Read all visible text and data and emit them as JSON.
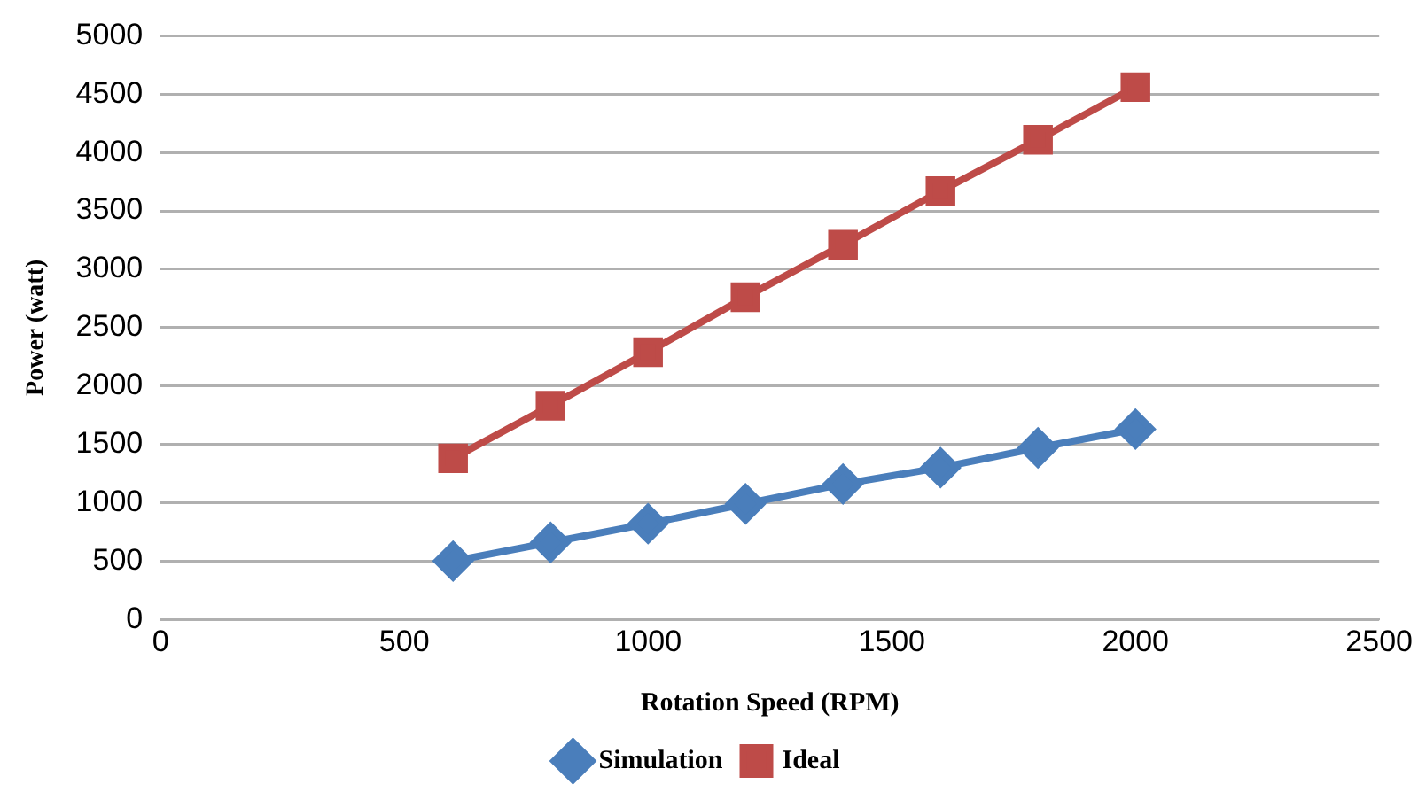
{
  "chart_data": {
    "type": "line",
    "xlabel": "Rotation Speed (RPM)",
    "ylabel": "Power (watt)",
    "x": [
      600,
      800,
      1000,
      1200,
      1400,
      1600,
      1800,
      2000
    ],
    "series": [
      {
        "name": "Simulation",
        "color": "#4a7ebb",
        "marker": "diamond",
        "values": [
          500,
          660,
          820,
          990,
          1160,
          1300,
          1470,
          1630
        ]
      },
      {
        "name": "Ideal",
        "color": "#be4b48",
        "marker": "square",
        "values": [
          1380,
          1830,
          2290,
          2760,
          3210,
          3670,
          4110,
          4560
        ]
      }
    ],
    "xlim": [
      0,
      2500
    ],
    "xticks": [
      0,
      500,
      1000,
      1500,
      2000,
      2500
    ],
    "ylim": [
      0,
      5000
    ],
    "yticks": [
      0,
      500,
      1000,
      1500,
      2000,
      2500,
      3000,
      3500,
      4000,
      4500,
      5000
    ],
    "grid": "y",
    "legend": "bottom",
    "line_style": "solid"
  }
}
